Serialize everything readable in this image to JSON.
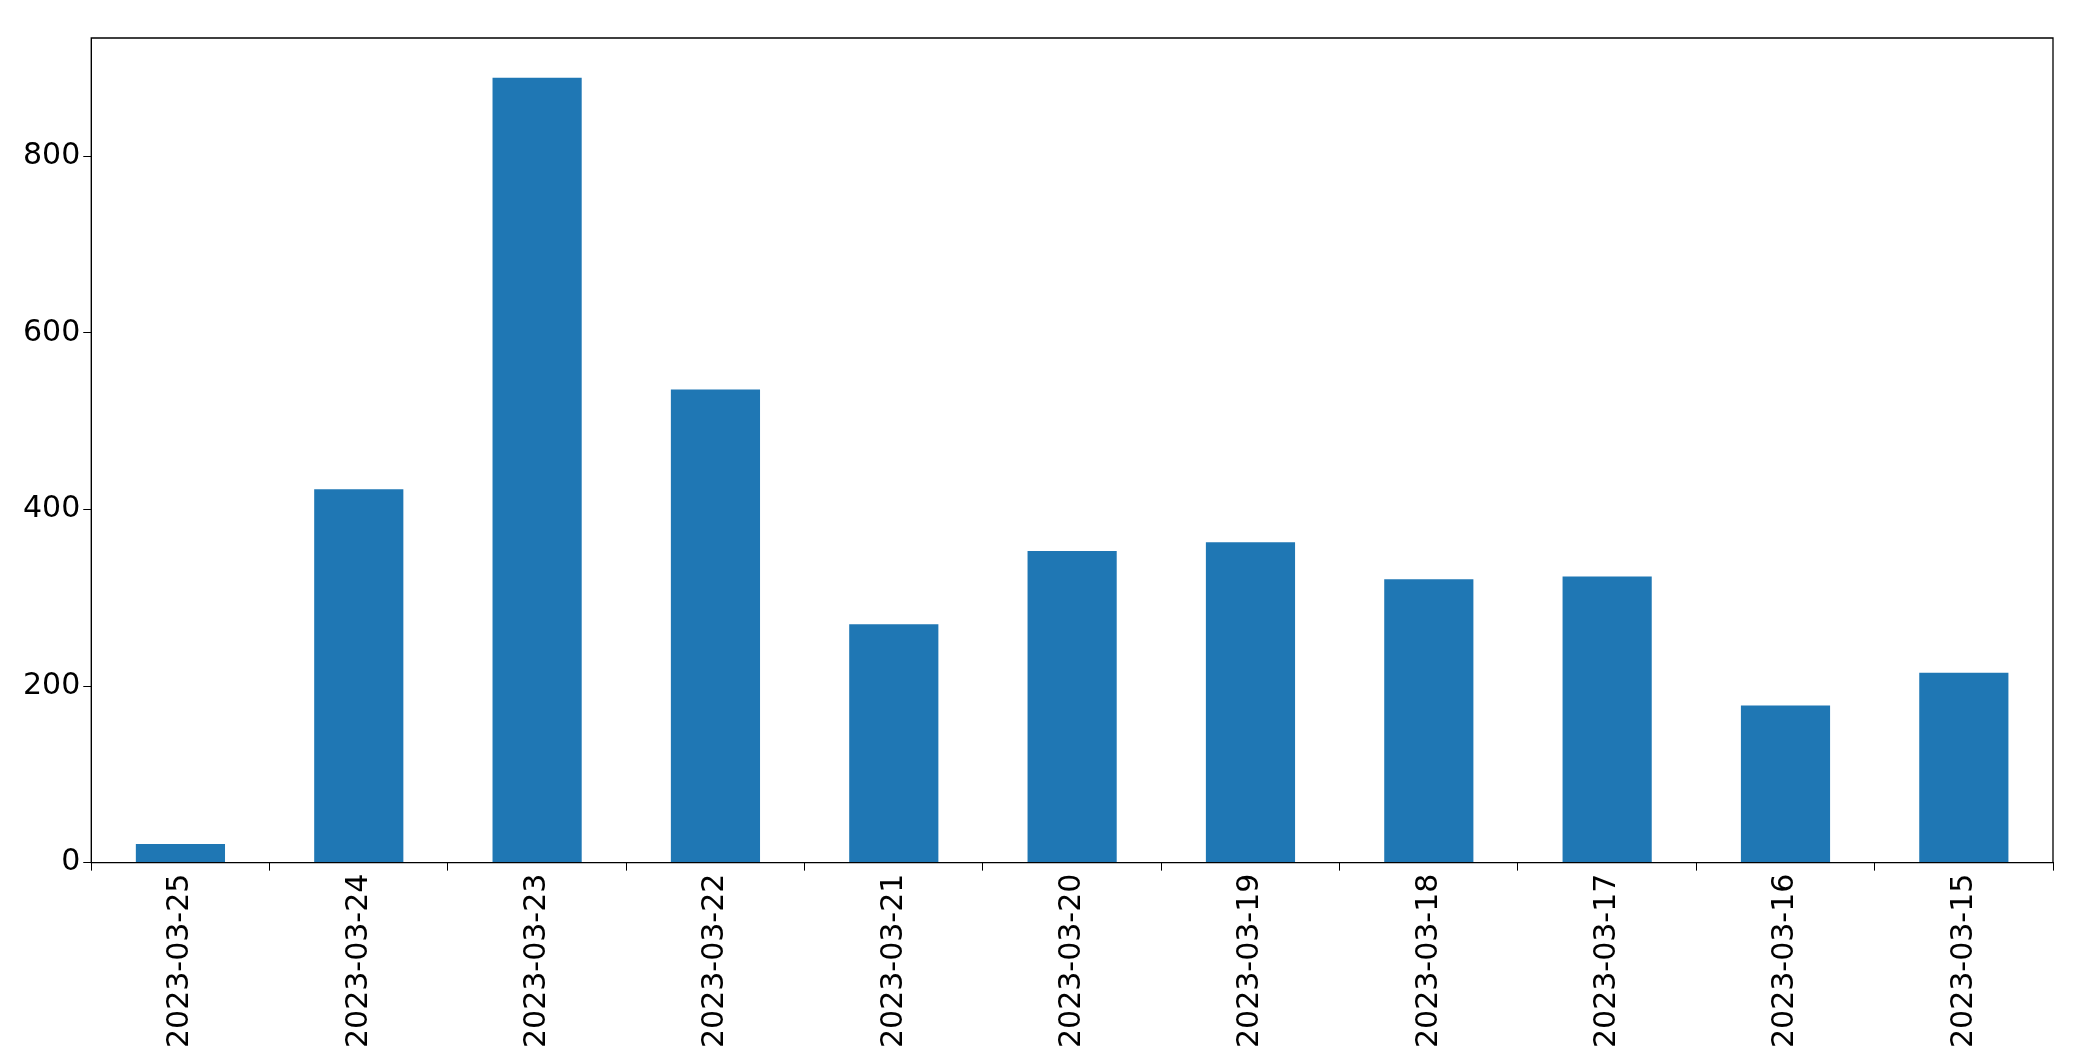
{
  "chart_data": {
    "type": "bar",
    "categories": [
      "2023-03-25",
      "2023-03-24",
      "2023-03-23",
      "2023-03-22",
      "2023-03-21",
      "2023-03-20",
      "2023-03-19",
      "2023-03-18",
      "2023-03-17",
      "2023-03-16",
      "2023-03-15"
    ],
    "values": [
      21,
      423,
      889,
      536,
      270,
      353,
      363,
      321,
      324,
      178,
      215
    ],
    "color": "#1f77b4",
    "ylim": [
      0,
      934
    ],
    "yticks": [
      0,
      200,
      400,
      600,
      800
    ],
    "grid": false,
    "legend": false
  }
}
